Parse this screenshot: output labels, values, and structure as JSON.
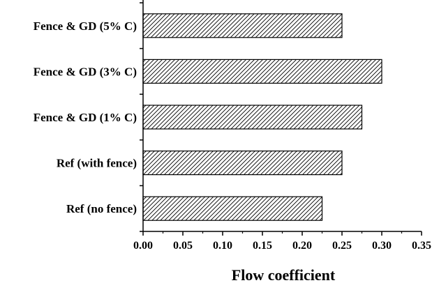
{
  "chart_data": {
    "type": "bar",
    "orientation": "horizontal",
    "categories": [
      "Ref (no fence)",
      "Ref (with fence)",
      "Fence & GD (1% C)",
      "Fence & GD (3% C)",
      "Fence & GD (5% C)"
    ],
    "values": [
      0.225,
      0.25,
      0.275,
      0.3,
      0.25
    ],
    "xlabel": "Flow coefficient",
    "ylabel": "",
    "xlim": [
      0.0,
      0.35
    ],
    "xticks": [
      "0.00",
      "0.05",
      "0.10",
      "0.15",
      "0.20",
      "0.25",
      "0.30",
      "0.35"
    ],
    "grid": false,
    "legend": "none",
    "bar_fill": "hatched",
    "colors": {
      "bar_stroke": "#000000",
      "hatch": "#000000",
      "bar_background": "#ffffff",
      "axis": "#000000"
    }
  }
}
